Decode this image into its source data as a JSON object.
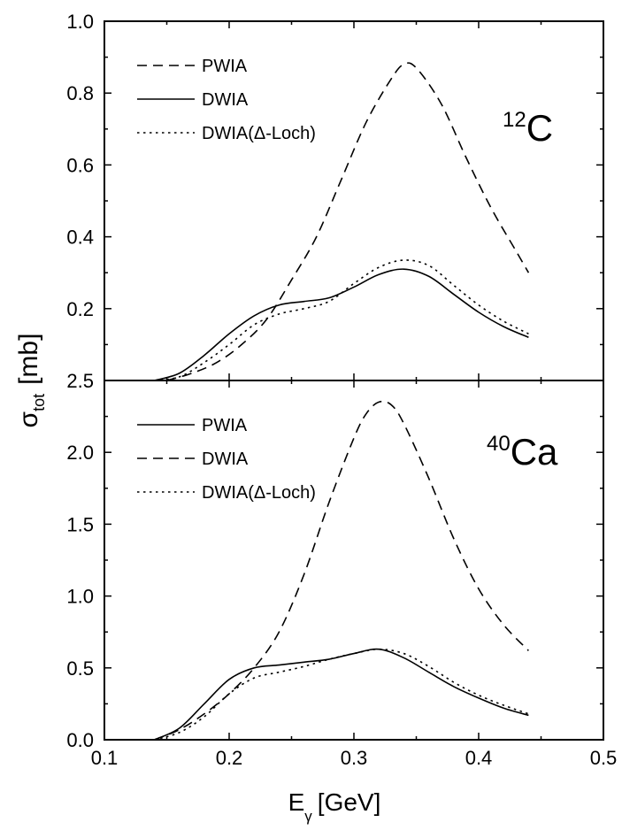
{
  "figure": {
    "y_label_main": "σ",
    "y_label_sub": "tot",
    "y_label_unit": "[mb]",
    "x_label_main": "E",
    "x_label_sub": "γ",
    "x_label_unit": "[GeV]"
  },
  "chart_data": [
    {
      "type": "line",
      "nucleus_mass": "12",
      "nucleus_symbol": "C",
      "xlim": [
        0.1,
        0.5
      ],
      "ylim": [
        0.0,
        1.0
      ],
      "x_ticks": [
        "0.1",
        "0.2",
        "0.3",
        "0.4",
        "0.5"
      ],
      "y_ticks": [
        {
          "value": 0.2,
          "label": "0.2"
        },
        {
          "value": 0.4,
          "label": "0.4"
        },
        {
          "value": 0.6,
          "label": "0.6"
        },
        {
          "value": 0.8,
          "label": "0.8"
        },
        {
          "value": 1.0,
          "label": "1.0"
        }
      ],
      "legend_position": "top-left",
      "series": [
        {
          "name": "PWIA",
          "style": "dashed",
          "x": [
            0.15,
            0.17,
            0.19,
            0.21,
            0.23,
            0.25,
            0.27,
            0.29,
            0.31,
            0.33,
            0.34,
            0.35,
            0.37,
            0.39,
            0.41,
            0.43,
            0.44
          ],
          "y": [
            0.0,
            0.02,
            0.05,
            0.1,
            0.17,
            0.28,
            0.4,
            0.56,
            0.72,
            0.84,
            0.88,
            0.87,
            0.77,
            0.62,
            0.48,
            0.36,
            0.3
          ]
        },
        {
          "name": "DWIA",
          "style": "solid",
          "x": [
            0.14,
            0.16,
            0.18,
            0.2,
            0.22,
            0.24,
            0.26,
            0.28,
            0.3,
            0.32,
            0.34,
            0.36,
            0.38,
            0.4,
            0.42,
            0.44
          ],
          "y": [
            0.0,
            0.02,
            0.07,
            0.13,
            0.18,
            0.21,
            0.22,
            0.23,
            0.26,
            0.295,
            0.31,
            0.29,
            0.24,
            0.19,
            0.15,
            0.12
          ]
        },
        {
          "name": "DWIA(Δ-Loch)",
          "style": "dotted",
          "x": [
            0.14,
            0.16,
            0.18,
            0.2,
            0.22,
            0.24,
            0.26,
            0.28,
            0.3,
            0.32,
            0.34,
            0.36,
            0.38,
            0.4,
            0.42,
            0.44
          ],
          "y": [
            0.0,
            0.01,
            0.05,
            0.1,
            0.155,
            0.185,
            0.2,
            0.22,
            0.27,
            0.315,
            0.335,
            0.32,
            0.265,
            0.21,
            0.165,
            0.13
          ]
        }
      ]
    },
    {
      "type": "line",
      "nucleus_mass": "40",
      "nucleus_symbol": "Ca",
      "xlim": [
        0.1,
        0.5
      ],
      "ylim": [
        0.0,
        2.5
      ],
      "x_ticks": [
        "0.1",
        "0.2",
        "0.3",
        "0.4",
        "0.5"
      ],
      "y_ticks": [
        {
          "value": 0.0,
          "label": "0.0"
        },
        {
          "value": 0.5,
          "label": "0.5"
        },
        {
          "value": 1.0,
          "label": "1.0"
        },
        {
          "value": 1.5,
          "label": "1.5"
        },
        {
          "value": 2.0,
          "label": "2.0"
        },
        {
          "value": 2.5,
          "label": "2.5"
        }
      ],
      "legend_position": "top-left",
      "series": [
        {
          "name": "PWIA",
          "style": "solid",
          "x": [
            0.14,
            0.16,
            0.18,
            0.2,
            0.22,
            0.24,
            0.26,
            0.28,
            0.3,
            0.32,
            0.34,
            0.36,
            0.38,
            0.4,
            0.42,
            0.44
          ],
          "y": [
            0.0,
            0.08,
            0.25,
            0.42,
            0.5,
            0.52,
            0.54,
            0.56,
            0.6,
            0.63,
            0.57,
            0.47,
            0.37,
            0.29,
            0.22,
            0.17
          ]
        },
        {
          "name": "DWIA",
          "style": "dashed",
          "x": [
            0.14,
            0.16,
            0.18,
            0.2,
            0.22,
            0.24,
            0.26,
            0.28,
            0.3,
            0.31,
            0.32,
            0.33,
            0.34,
            0.36,
            0.38,
            0.4,
            0.42,
            0.44
          ],
          "y": [
            0.0,
            0.07,
            0.18,
            0.32,
            0.5,
            0.75,
            1.15,
            1.65,
            2.1,
            2.27,
            2.35,
            2.33,
            2.2,
            1.82,
            1.4,
            1.05,
            0.8,
            0.62
          ]
        },
        {
          "name": "DWIA(Δ-Loch)",
          "style": "dotted",
          "x": [
            0.14,
            0.16,
            0.18,
            0.2,
            0.22,
            0.24,
            0.26,
            0.28,
            0.3,
            0.32,
            0.34,
            0.36,
            0.38,
            0.4,
            0.42,
            0.44
          ],
          "y": [
            0.0,
            0.05,
            0.16,
            0.32,
            0.43,
            0.47,
            0.51,
            0.56,
            0.6,
            0.63,
            0.6,
            0.51,
            0.4,
            0.31,
            0.24,
            0.18
          ]
        }
      ]
    }
  ]
}
